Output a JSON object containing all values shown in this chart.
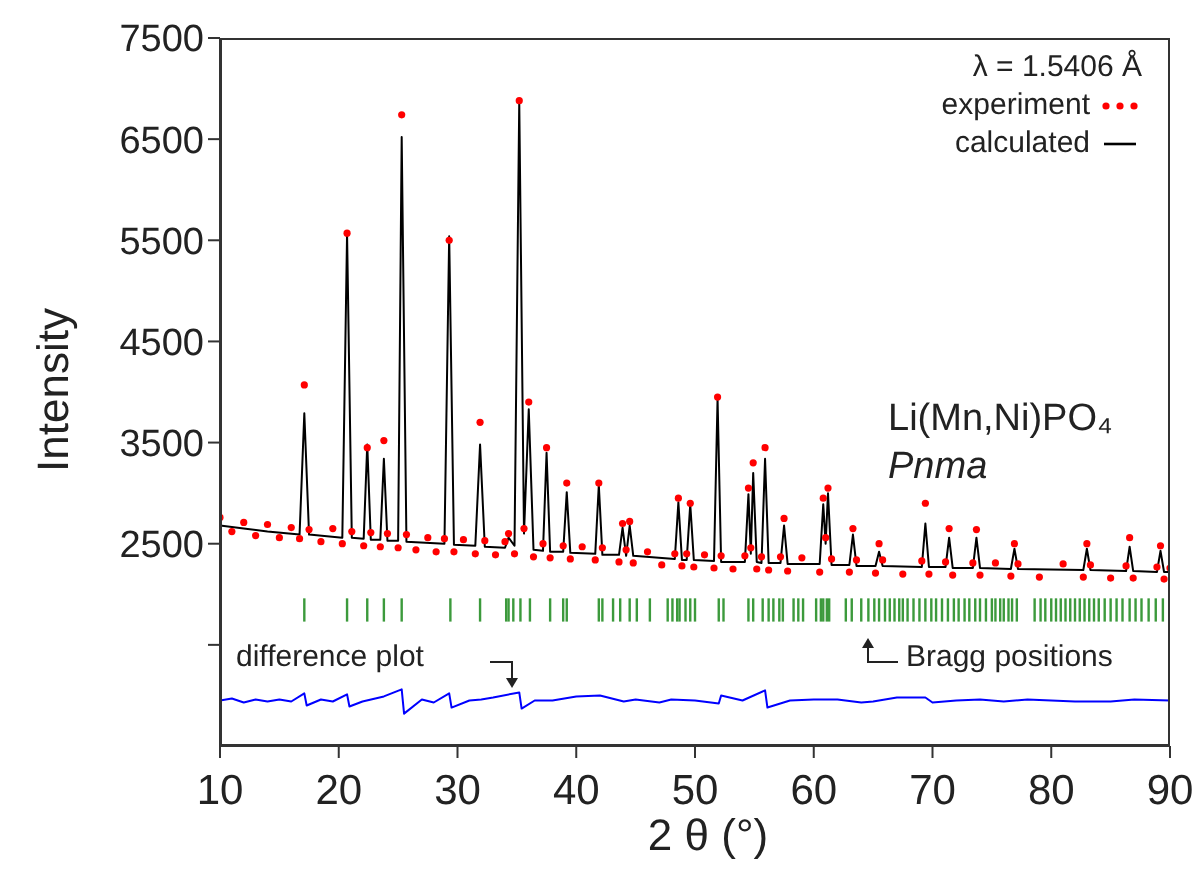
{
  "chart_data": {
    "type": "line",
    "xlabel": "2 θ (°)",
    "ylabel": "Intensity",
    "xlim": [
      10,
      90
    ],
    "xticks": [
      10,
      20,
      30,
      40,
      50,
      60,
      70,
      80,
      90
    ],
    "ylim": [
      500,
      7500
    ],
    "yticks": [
      {
        "value": 1500,
        "label": null
      },
      2500,
      3500,
      4500,
      5500,
      6500,
      7500
    ],
    "legend": "top right",
    "annotations": [
      "λ = 1.5406 Å",
      "Li(Mn,Ni)PO₄",
      "Pnma"
    ],
    "series": [
      {
        "name": "experiment",
        "type": "scatter",
        "marker": "circle",
        "color": "#ff0000",
        "x": [
          10,
          11,
          12,
          13,
          14,
          15,
          16,
          16.7,
          17.1,
          17.5,
          18.5,
          19.5,
          20.3,
          20.7,
          21.1,
          22.1,
          22.4,
          22.7,
          23.5,
          23.8,
          24.1,
          25.0,
          25.3,
          25.7,
          26.5,
          27.5,
          28.2,
          28.9,
          29.3,
          29.7,
          30.5,
          31.5,
          31.9,
          32.3,
          33.2,
          34.0,
          34.3,
          34.8,
          35.2,
          35.6,
          36.0,
          36.4,
          37.2,
          37.5,
          37.8,
          38.9,
          39.2,
          39.5,
          40.5,
          41.6,
          41.9,
          42.2,
          43.6,
          43.9,
          44.2,
          44.5,
          44.8,
          46,
          47.2,
          48.3,
          48.6,
          48.9,
          49.3,
          49.6,
          49.9,
          50.8,
          51.6,
          51.9,
          52.2,
          53.2,
          54.2,
          54.5,
          54.7,
          54.9,
          55.2,
          55.6,
          55.9,
          56.2,
          57.2,
          57.5,
          57.8,
          59,
          60.5,
          60.8,
          61.0,
          61.2,
          61.5,
          63.0,
          63.3,
          63.6,
          65.2,
          65.5,
          65.8,
          67.5,
          69.1,
          69.4,
          69.7,
          71.1,
          71.4,
          71.7,
          73.4,
          73.7,
          74.0,
          75.3,
          76.6,
          76.9,
          77.2,
          79,
          81,
          82.7,
          83.0,
          83.3,
          85,
          86.3,
          86.6,
          86.9,
          88.9,
          89.2,
          89.5,
          90
        ],
        "values": [
          2760,
          2620,
          2710,
          2580,
          2690,
          2560,
          2660,
          2550,
          4070,
          2640,
          2520,
          2650,
          2500,
          5570,
          2620,
          2480,
          3450,
          2610,
          2470,
          3520,
          2600,
          2460,
          6740,
          2590,
          2440,
          2560,
          2420,
          2550,
          5500,
          2420,
          2540,
          2400,
          3700,
          2530,
          2390,
          2520,
          2600,
          2400,
          6880,
          2650,
          3900,
          2370,
          2500,
          3450,
          2360,
          2480,
          3100,
          2350,
          2470,
          2340,
          3100,
          2460,
          2320,
          2700,
          2440,
          2720,
          2310,
          2420,
          2290,
          2400,
          2950,
          2280,
          2400,
          2900,
          2270,
          2390,
          2260,
          3950,
          2380,
          2250,
          2380,
          3050,
          2460,
          3300,
          2250,
          2370,
          3450,
          2240,
          2370,
          2750,
          2230,
          2360,
          2220,
          2950,
          2560,
          3050,
          2350,
          2220,
          2650,
          2340,
          2210,
          2500,
          2340,
          2200,
          2330,
          2900,
          2200,
          2320,
          2650,
          2190,
          2310,
          2640,
          2190,
          2310,
          2180,
          2500,
          2300,
          2170,
          2300,
          2170,
          2500,
          2290,
          2160,
          2280,
          2560,
          2160,
          2270,
          2480,
          2150,
          2260
        ]
      },
      {
        "name": "calculated",
        "marker": "none",
        "color": "#000000",
        "x": [
          10,
          12,
          14,
          16.7,
          17.1,
          17.5,
          20.3,
          20.7,
          21.1,
          22.1,
          22.4,
          22.7,
          23.5,
          23.8,
          24.1,
          25.0,
          25.3,
          25.7,
          28.9,
          29.3,
          29.7,
          31.5,
          31.9,
          32.3,
          34.0,
          34.3,
          34.8,
          35.2,
          35.6,
          36.0,
          36.4,
          37.2,
          37.5,
          37.8,
          38.9,
          39.2,
          39.5,
          41.6,
          41.9,
          42.2,
          43.6,
          43.9,
          44.2,
          44.5,
          44.8,
          48.3,
          48.6,
          48.9,
          49.3,
          49.6,
          49.9,
          51.6,
          51.9,
          52.2,
          54.2,
          54.5,
          54.7,
          54.9,
          55.2,
          55.6,
          55.9,
          56.2,
          57.2,
          57.5,
          57.8,
          60.5,
          60.8,
          61.0,
          61.2,
          61.5,
          63.0,
          63.3,
          63.6,
          65.2,
          65.5,
          65.8,
          69.1,
          69.4,
          69.7,
          71.1,
          71.4,
          71.7,
          73.4,
          73.7,
          74.0,
          76.6,
          76.9,
          77.2,
          82.7,
          83.0,
          83.3,
          86.3,
          86.6,
          86.9,
          88.9,
          89.2,
          89.5,
          90
        ],
        "values": [
          2680,
          2650,
          2620,
          2590,
          3790,
          2590,
          2560,
          5560,
          2560,
          2550,
          3480,
          2540,
          2540,
          3340,
          2530,
          2530,
          6520,
          2520,
          2500,
          5540,
          2490,
          2480,
          3480,
          2470,
          2460,
          2560,
          2480,
          6870,
          2600,
          3830,
          2440,
          2430,
          3400,
          2420,
          2420,
          3010,
          2410,
          2400,
          3080,
          2390,
          2390,
          2660,
          2380,
          2680,
          2380,
          2350,
          2910,
          2340,
          2340,
          2890,
          2340,
          2330,
          3930,
          2320,
          2320,
          2990,
          2400,
          3200,
          2320,
          2310,
          3340,
          2310,
          2310,
          2680,
          2300,
          2300,
          2890,
          2500,
          3000,
          2290,
          2290,
          2590,
          2280,
          2280,
          2420,
          2280,
          2270,
          2700,
          2270,
          2270,
          2560,
          2260,
          2260,
          2560,
          2260,
          2250,
          2450,
          2250,
          2240,
          2450,
          2240,
          2230,
          2470,
          2230,
          2220,
          2430,
          2220,
          2220
        ]
      },
      {
        "name": "Bragg positions",
        "type": "bar",
        "color": "#3c9a3c",
        "x": [
          17.1,
          20.7,
          22.4,
          23.8,
          25.3,
          29.4,
          31.9,
          34.1,
          34.3,
          34.7,
          35.3,
          36.1,
          37.8,
          38.9,
          39.2,
          41.9,
          42.2,
          43.1,
          43.7,
          44.5,
          45.1,
          46.2,
          47.7,
          48.1,
          48.5,
          48.7,
          49.2,
          49.6,
          50.0,
          52.0,
          52.4,
          54.5,
          54.9,
          55.7,
          56.2,
          56.6,
          57.1,
          57.4,
          58.3,
          58.7,
          59.1,
          60.2,
          60.6,
          60.8,
          61.1,
          61.3,
          62.7,
          63.2,
          64.0,
          64.6,
          65.1,
          65.5,
          66.0,
          66.4,
          66.8,
          67.2,
          67.5,
          67.9,
          68.4,
          68.9,
          69.4,
          69.9,
          70.3,
          70.8,
          71.3,
          71.8,
          72.2,
          72.7,
          73.1,
          73.6,
          74.0,
          74.5,
          75.0,
          75.3,
          75.7,
          76.0,
          76.4,
          76.7,
          77.1,
          78.6,
          79.1,
          79.5,
          80.0,
          80.4,
          80.8,
          81.2,
          81.6,
          82.0,
          82.4,
          82.8,
          83.2,
          83.6,
          84.0,
          84.5,
          85.0,
          85.5,
          86.0,
          86.6,
          87.1,
          87.6,
          88.2,
          88.8,
          89.4
        ],
        "base": [
          1730,
          1730,
          1730,
          1730,
          1730,
          1730,
          1730,
          1730,
          1730,
          1730,
          1730,
          1730,
          1730,
          1730,
          1730,
          1730,
          1730,
          1730,
          1730,
          1730,
          1730,
          1730,
          1730,
          1730,
          1730,
          1730,
          1730,
          1730,
          1730,
          1730,
          1730,
          1730,
          1730,
          1730,
          1730,
          1730,
          1730,
          1730,
          1730,
          1730,
          1730,
          1730,
          1730,
          1730,
          1730,
          1730,
          1730,
          1730,
          1730,
          1730,
          1730,
          1730,
          1730,
          1730,
          1730,
          1730,
          1730,
          1730,
          1730,
          1730,
          1730,
          1730,
          1730,
          1730,
          1730,
          1730,
          1730,
          1730,
          1730,
          1730,
          1730,
          1730,
          1730,
          1730,
          1730,
          1730,
          1730,
          1730,
          1730,
          1730,
          1730,
          1730,
          1730,
          1730,
          1730,
          1730,
          1730,
          1730,
          1730,
          1730,
          1730,
          1730,
          1730,
          1730,
          1730,
          1730,
          1730,
          1730,
          1730,
          1730,
          1730,
          1730,
          1730
        ],
        "values": [
          230,
          230,
          230,
          230,
          230,
          230,
          230,
          230,
          230,
          230,
          230,
          230,
          230,
          230,
          230,
          230,
          230,
          230,
          230,
          230,
          230,
          230,
          230,
          230,
          230,
          230,
          230,
          230,
          230,
          230,
          230,
          230,
          230,
          230,
          230,
          230,
          230,
          230,
          230,
          230,
          230,
          230,
          230,
          230,
          230,
          230,
          230,
          230,
          230,
          230,
          230,
          230,
          230,
          230,
          230,
          230,
          230,
          230,
          230,
          230,
          230,
          230,
          230,
          230,
          230,
          230,
          230,
          230,
          230,
          230,
          230,
          230,
          230,
          230,
          230,
          230,
          230,
          230,
          230,
          230,
          230,
          230,
          230,
          230,
          230,
          230,
          230,
          230,
          230,
          230,
          230,
          230,
          230,
          230,
          230,
          230,
          230,
          230,
          230,
          230,
          230,
          230,
          230
        ]
      },
      {
        "name": "difference plot",
        "marker": "none",
        "color": "#0000ff",
        "x": [
          10,
          11,
          12,
          13,
          14,
          15,
          16,
          17.1,
          17.3,
          18.5,
          19.5,
          20.7,
          20.9,
          22,
          23.8,
          25.3,
          25.5,
          27,
          28,
          29.3,
          29.5,
          31,
          32,
          33,
          35.2,
          35.4,
          36.5,
          38,
          40,
          42,
          44,
          45,
          47,
          48,
          50,
          52,
          52.2,
          54,
          55.9,
          56.1,
          58,
          60,
          62,
          64,
          65,
          67,
          69.4,
          70,
          72,
          74,
          76,
          78,
          80,
          82,
          85,
          87,
          90
        ],
        "values": [
          950,
          970,
          930,
          960,
          940,
          960,
          940,
          1020,
          900,
          960,
          940,
          1010,
          890,
          940,
          990,
          1060,
          820,
          960,
          930,
          1020,
          880,
          950,
          960,
          980,
          1030,
          870,
          950,
          950,
          990,
          1000,
          940,
          960,
          930,
          960,
          950,
          920,
          1000,
          950,
          1050,
          880,
          950,
          960,
          960,
          930,
          940,
          980,
          980,
          930,
          950,
          960,
          940,
          960,
          950,
          940,
          940,
          960,
          950
        ]
      }
    ]
  }
}
